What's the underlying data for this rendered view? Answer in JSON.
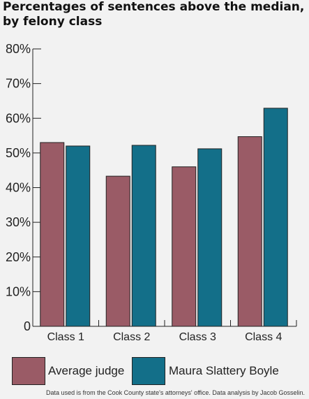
{
  "chart_data": {
    "type": "bar",
    "title": "Percentages of sentences above the median, by felony class",
    "categories": [
      "Class 1",
      "Class 2",
      "Class 3",
      "Class 4"
    ],
    "series": [
      {
        "name": "Average judge",
        "values": [
          53,
          43.3,
          46,
          54.7
        ]
      },
      {
        "name": "Maura Slattery Boyle",
        "values": [
          52,
          52.2,
          51.2,
          62.9
        ]
      }
    ],
    "ylim": [
      0,
      80
    ],
    "yticks": [
      {
        "value": 0,
        "label": "0"
      },
      {
        "value": 10,
        "label": "10%"
      },
      {
        "value": 20,
        "label": "20%"
      },
      {
        "value": 30,
        "label": "30%"
      },
      {
        "value": 40,
        "label": "40%"
      },
      {
        "value": 50,
        "label": "50%"
      },
      {
        "value": 60,
        "label": "60%"
      },
      {
        "value": 70,
        "label": "70%"
      },
      {
        "value": 80,
        "label": "80%"
      }
    ],
    "grid": false,
    "legend_position": "bottom",
    "colors": [
      "#9a5b66",
      "#136f89"
    ]
  },
  "source_note": "Data used is from the Cook County state's attorneys' office. Data analysis by Jacob Gosselin."
}
